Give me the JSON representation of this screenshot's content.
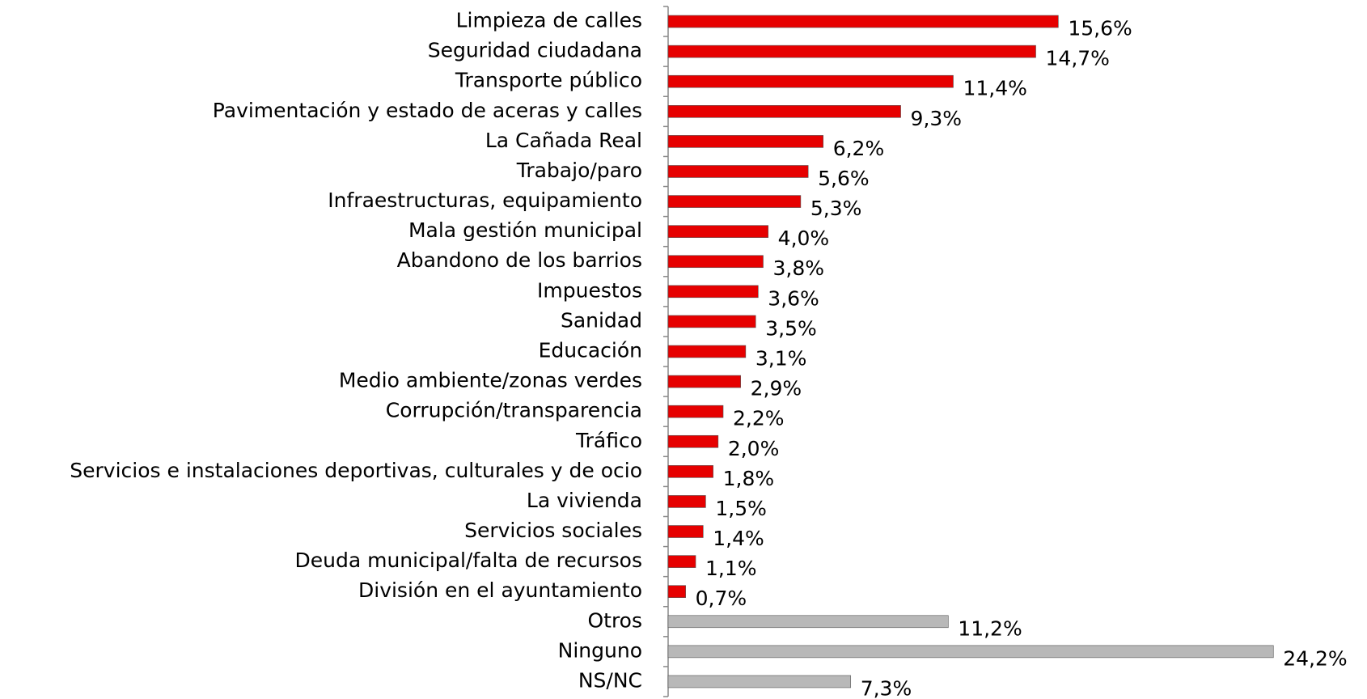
{
  "chart_data": {
    "type": "barh",
    "categories": [
      "Limpieza de calles",
      "Seguridad ciudadana",
      "Transporte público",
      "Pavimentación y estado de aceras y calles",
      "La Cañada Real",
      "Trabajo/paro",
      "Infraestructuras, equipamiento",
      "Mala gestión municipal",
      "Abandono de los barrios",
      "Impuestos",
      "Sanidad",
      "Educación",
      "Medio ambiente/zonas verdes",
      "Corrupción/transparencia",
      "Tráfico",
      "Servicios e instalaciones deportivas, culturales y de ocio",
      "La vivienda",
      "Servicios sociales",
      "Deuda municipal/falta de recursos",
      "División en el ayuntamiento",
      "Otros",
      "Ninguno",
      "NS/NC"
    ],
    "values": [
      15.6,
      14.7,
      11.4,
      9.3,
      6.2,
      5.6,
      5.3,
      4.0,
      3.8,
      3.6,
      3.5,
      3.1,
      2.9,
      2.2,
      2.0,
      1.8,
      1.5,
      1.4,
      1.1,
      0.7,
      11.2,
      24.2,
      7.3
    ],
    "value_labels": [
      "15,6%",
      "14,7%",
      "11,4%",
      "9,3%",
      "6,2%",
      "5,6%",
      "5,3%",
      "4,0%",
      "3,8%",
      "3,6%",
      "3,5%",
      "3,1%",
      "2,9%",
      "2,2%",
      "2,0%",
      "1,8%",
      "1,5%",
      "1,4%",
      "1,1%",
      "0,7%",
      "11,2%",
      "24,2%",
      "7,3%"
    ],
    "colors": [
      "#e60000",
      "#e60000",
      "#e60000",
      "#e60000",
      "#e60000",
      "#e60000",
      "#e60000",
      "#e60000",
      "#e60000",
      "#e60000",
      "#e60000",
      "#e60000",
      "#e60000",
      "#e60000",
      "#e60000",
      "#e60000",
      "#e60000",
      "#e60000",
      "#e60000",
      "#e60000",
      "#b8b8b8",
      "#b8b8b8",
      "#b8b8b8"
    ],
    "xlim": [
      0,
      25
    ]
  }
}
